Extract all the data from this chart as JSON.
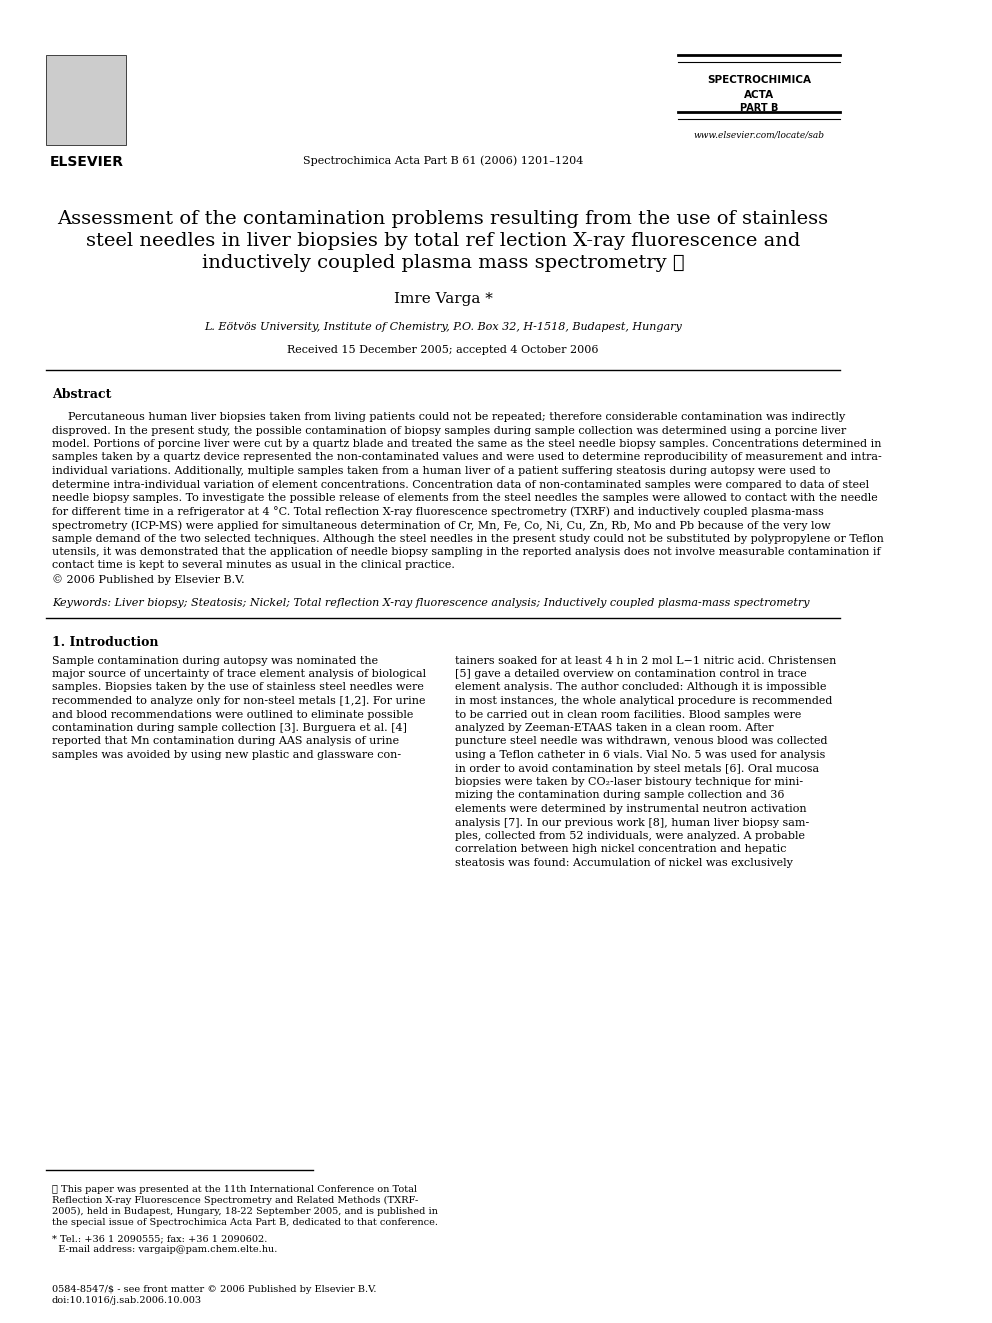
{
  "bg_color": "#ffffff",
  "title_line1": "Assessment of the contamination problems resulting from the use of stainless",
  "title_line2": "steel needles in liver biopsies by total ref lection X-ray fluorescence and",
  "title_line3": "inductively coupled plasma mass spectrometry ★",
  "author": "Imre Varga *",
  "affiliation": "L. Eötvös University, Institute of Chemistry, P.O. Box 32, H-1518, Budapest, Hungary",
  "received": "Received 15 December 2005; accepted 4 October 2006",
  "journal_header": "Spectrochimica Acta Part B 61 (2006) 1201–1204",
  "journal_name_line1": "SPECTROCHIMICA",
  "journal_name_line2": "ACTA",
  "journal_name_line3": "PART B",
  "elsevier": "ELSEVIER",
  "website": "www.elsevier.com/locate/sab",
  "abstract_title": "Abstract",
  "abstract_body": "Percutaneous human liver biopsies taken from living patients could not be repeated; therefore considerable contamination was indirectly\ndisproved. In the present study, the possible contamination of biopsy samples during sample collection was determined using a porcine liver\nmodel. Portions of porcine liver were cut by a quartz blade and treated the same as the steel needle biopsy samples. Concentrations determined in\nsamples taken by a quartz device represented the non-contaminated values and were used to determine reproducibility of measurement and intra-\nindividual variations. Additionally, multiple samples taken from a human liver of a patient suffering steatosis during autopsy were used to\ndetermine intra-individual variation of element concentrations. Concentration data of non-contaminated samples were compared to data of steel\nneedle biopsy samples. To investigate the possible release of elements from the steel needles the samples were allowed to contact with the needle\nfor different time in a refrigerator at 4 °C. Total reflection X-ray fluorescence spectrometry (TXRF) and inductively coupled plasma-mass\nspectrometry (ICP-MS) were applied for simultaneous determination of Cr, Mn, Fe, Co, Ni, Cu, Zn, Rb, Mo and Pb because of the very low\nsample demand of the two selected techniques. Although the steel needles in the present study could not be substituted by polypropylene or Teflon\nutensils, it was demonstrated that the application of needle biopsy sampling in the reported analysis does not involve measurable contamination if\ncontact time is kept to several minutes as usual in the clinical practice.\n© 2006 Published by Elsevier B.V.",
  "keywords": "Keywords: Liver biopsy; Steatosis; Nickel; Total reflection X-ray fluorescence analysis; Inductively coupled plasma-mass spectrometry",
  "section1_title": "1. Introduction",
  "section1_left": "Sample contamination during autopsy was nominated the\nmajor source of uncertainty of trace element analysis of biological\nsamples. Biopsies taken by the use of stainless steel needles were\nrecommended to analyze only for non-steel metals [1,2]. For urine\nand blood recommendations were outlined to eliminate possible\ncontamination during sample collection [3]. Burguera et al. [4]\nreported that Mn contamination during AAS analysis of urine\nsamples was avoided by using new plastic and glassware con-",
  "section1_right": "tainers soaked for at least 4 h in 2 mol L−1 nitric acid. Christensen\n[5] gave a detailed overview on contamination control in trace\nelement analysis. The author concluded: Although it is impossible\nin most instances, the whole analytical procedure is recommended\nto be carried out in clean room facilities. Blood samples were\nanalyzed by Zeeman-ETAAS taken in a clean room. After\npuncture steel needle was withdrawn, venous blood was collected\nusing a Teflon catheter in 6 vials. Vial No. 5 was used for analysis\nin order to avoid contamination by steel metals [6]. Oral mucosa\nbiopsies were taken by CO2-laser bistoury technique for mini-\nmizing the contamination during sample collection and 36\nelements were determined by instrumental neutron activation\nanalysis [7]. In our previous work [8], human liver biopsy sam-\nples, collected from 52 individuals, were analyzed. A probable\ncorrelation between high nickel concentration and hepatic\nsteatosis was found: Accumulation of nickel was exclusively",
  "footnote1": "★ This paper was presented at the 11th International Conference on Total\nReflection X-ray Fluorescence Spectrometry and Related Methods (TXRF-\n2005), held in Budapest, Hungary, 18-22 September 2005, and is published in\nthe special issue of Spectrochimica Acta Part B, dedicated to that conference.",
  "footnote2": "* Tel.: +36 1 2090555; fax: +36 1 2090602.\n  E-mail address: vargaip@pam.chem.elte.hu.",
  "footer": "0584-8547/$ - see front matter © 2006 Published by Elsevier B.V.\ndoi:10.1016/j.sab.2006.10.003"
}
